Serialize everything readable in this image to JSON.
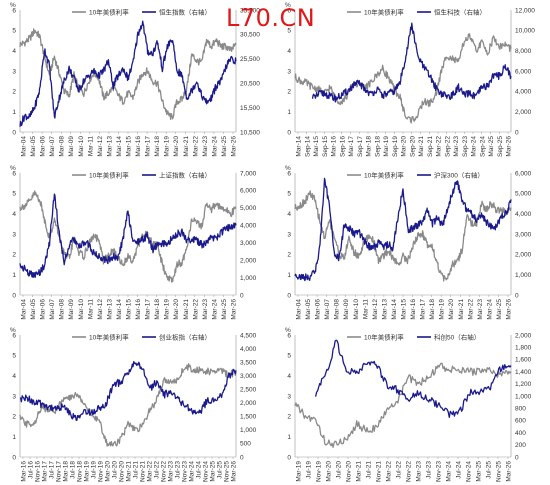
{
  "watermark": "L70.CN",
  "chart_data": [
    {
      "type": "line",
      "y_unit_label": "%",
      "legend": [
        "10年美债利率",
        "恒生指数（右轴）"
      ],
      "colors": [
        "#8a8a8a",
        "#1a1a8c"
      ],
      "ylim_left": [
        0,
        6
      ],
      "left_ticks": [
        "0",
        "1",
        "2",
        "3",
        "4",
        "5",
        "6"
      ],
      "ylim_right": [
        10500,
        35500
      ],
      "right_ticks": [
        "10,500",
        "15,500",
        "20,500",
        "25,500",
        "30,500",
        "35,500"
      ],
      "x_ticks": [
        "Mar-04",
        "Mar-05",
        "Mar-06",
        "Mar-07",
        "Mar-08",
        "Mar-09",
        "Mar-10",
        "Mar-11",
        "Mar-12",
        "Mar-13",
        "Mar-14",
        "Mar-15",
        "Mar-16",
        "Mar-17",
        "Mar-18",
        "Mar-19",
        "Mar-20",
        "Mar-21",
        "Mar-22",
        "Mar-23",
        "Mar-24",
        "Mar-25",
        "Mar-26"
      ],
      "series": [
        {
          "name": "10年美债利率",
          "axis": "left",
          "values": [
            4.3,
            4.4,
            4.6,
            5.0,
            4.7,
            3.7,
            2.8,
            3.7,
            2.9,
            2.0,
            1.8,
            2.8,
            2.1,
            1.9,
            2.5,
            2.9,
            2.7,
            1.7,
            1.9,
            2.2,
            1.8,
            1.5,
            1.9,
            1.7,
            2.4,
            2.9,
            3.0,
            2.5,
            2.4,
            1.5,
            0.9,
            0.7,
            1.5,
            1.6,
            2.2,
            3.8,
            3.5,
            3.4,
            4.5,
            4.2,
            4.5,
            4.2,
            4.2,
            4.0,
            4.3
          ]
        },
        {
          "name": "恒生指数（右轴）",
          "axis": "right",
          "values": [
            12000,
            13800,
            13600,
            15600,
            19000,
            27500,
            24000,
            13500,
            17500,
            21000,
            23500,
            21500,
            19000,
            21000,
            22000,
            23000,
            22000,
            23000,
            25000,
            20000,
            22000,
            23500,
            21500,
            24500,
            30500,
            33000,
            27000,
            26500,
            29000,
            23500,
            28000,
            29500,
            23000,
            22000,
            17500,
            19000,
            21000,
            18000,
            16500,
            17500,
            20000,
            21000,
            24000,
            25500,
            25000
          ]
        }
      ]
    },
    {
      "type": "line",
      "y_unit_label": "%",
      "legend": [
        "10年美债利率",
        "恒生科技（右轴）"
      ],
      "colors": [
        "#8a8a8a",
        "#1a1a8c"
      ],
      "ylim_left": [
        0,
        6
      ],
      "left_ticks": [
        "0",
        "1",
        "2",
        "3",
        "4",
        "5",
        "6"
      ],
      "ylim_right": [
        0,
        12000
      ],
      "right_ticks": [
        "0",
        "2,000",
        "4,000",
        "6,000",
        "8,000",
        "10,000",
        "12,000"
      ],
      "x_ticks": [
        "Mar-14",
        "Sep-14",
        "Mar-15",
        "Sep-15",
        "Mar-16",
        "Sep-16",
        "Mar-17",
        "Sep-17",
        "Mar-18",
        "Sep-18",
        "Mar-19",
        "Sep-19",
        "Mar-20",
        "Sep-20",
        "Mar-21",
        "Sep-21",
        "Mar-22",
        "Sep-22",
        "Mar-23",
        "Sep-23",
        "Mar-24",
        "Sep-24",
        "Mar-25",
        "Sep-25",
        "Mar-26"
      ],
      "series": [
        {
          "name": "10年美债利率",
          "axis": "left",
          "values": [
            2.7,
            2.5,
            2.4,
            2.2,
            2.1,
            1.9,
            2.2,
            1.6,
            1.5,
            1.8,
            2.4,
            2.3,
            2.2,
            2.4,
            2.8,
            3.1,
            2.7,
            2.1,
            1.7,
            0.7,
            0.6,
            0.8,
            1.5,
            1.4,
            1.7,
            2.9,
            3.8,
            3.6,
            3.4,
            4.5,
            4.7,
            4.0,
            4.4,
            3.9,
            4.6,
            4.2,
            4.3,
            4.1
          ]
        },
        {
          "name": "恒生科技（右轴）",
          "axis": "right",
          "values": [
            null,
            null,
            null,
            3300,
            3700,
            3800,
            3500,
            3300,
            3600,
            4000,
            4600,
            4800,
            4200,
            3700,
            4200,
            3600,
            3800,
            4000,
            4900,
            7500,
            10600,
            7500,
            6400,
            5600,
            4500,
            3800,
            3500,
            3600,
            4400,
            3600,
            3800,
            3400,
            4400,
            4500,
            5600,
            5500,
            6500,
            5500
          ]
        }
      ]
    },
    {
      "type": "line",
      "y_unit_label": "%",
      "legend": [
        "10年美债利率",
        "上证指数（右轴）"
      ],
      "colors": [
        "#8a8a8a",
        "#1a1a8c"
      ],
      "ylim_left": [
        0,
        6
      ],
      "left_ticks": [
        "0",
        "1",
        "2",
        "3",
        "4",
        "5",
        "6"
      ],
      "ylim_right": [
        0,
        7000
      ],
      "right_ticks": [
        "0",
        "1,000",
        "2,000",
        "3,000",
        "4,000",
        "5,000",
        "6,000",
        "7,000"
      ],
      "x_ticks": [
        "Mar-04",
        "Mar-05",
        "Mar-06",
        "Mar-07",
        "Mar-08",
        "Mar-09",
        "Mar-10",
        "Mar-11",
        "Mar-12",
        "Mar-13",
        "Mar-14",
        "Mar-15",
        "Mar-16",
        "Mar-17",
        "Mar-18",
        "Mar-19",
        "Mar-20",
        "Mar-21",
        "Mar-22",
        "Mar-23",
        "Mar-24",
        "Mar-25",
        "Mar-26"
      ],
      "series": [
        {
          "name": "10年美债利率",
          "axis": "left",
          "values": [
            4.3,
            4.4,
            4.6,
            5.0,
            4.7,
            3.7,
            2.8,
            3.7,
            2.9,
            2.0,
            1.8,
            2.8,
            2.1,
            1.9,
            2.5,
            2.9,
            2.7,
            1.7,
            1.9,
            2.2,
            1.8,
            1.5,
            1.9,
            1.7,
            2.4,
            2.9,
            3.0,
            2.5,
            2.4,
            1.5,
            0.9,
            0.7,
            1.5,
            1.6,
            2.2,
            3.8,
            3.5,
            3.4,
            4.5,
            4.2,
            4.5,
            4.2,
            4.2,
            4.0,
            4.3
          ]
        },
        {
          "name": "上证指数（右轴）",
          "axis": "right",
          "values": [
            1700,
            1500,
            1200,
            1100,
            1300,
            1700,
            3000,
            5900,
            3500,
            1900,
            2800,
            3200,
            2700,
            3000,
            2900,
            2400,
            2200,
            2100,
            2000,
            2200,
            2100,
            3300,
            4800,
            3000,
            3100,
            3200,
            3400,
            2600,
            2900,
            3000,
            2800,
            3300,
            3500,
            3600,
            3100,
            3200,
            3100,
            2900,
            3000,
            3300,
            3200,
            3600,
            3800,
            3900,
            4000
          ]
        }
      ]
    },
    {
      "type": "line",
      "y_unit_label": "%",
      "legend": [
        "10年美债利率",
        "沪深300（右轴）"
      ],
      "colors": [
        "#8a8a8a",
        "#1a1a8c"
      ],
      "ylim_left": [
        0,
        6
      ],
      "left_ticks": [
        "0",
        "1",
        "2",
        "3",
        "4",
        "5",
        "6"
      ],
      "ylim_right": [
        0,
        6000
      ],
      "right_ticks": [
        "0",
        "1,000",
        "2,000",
        "3,000",
        "4,000",
        "5,000",
        "6,000"
      ],
      "x_ticks": [
        "Mar-04",
        "Mar-05",
        "Mar-06",
        "Mar-07",
        "Mar-08",
        "Mar-09",
        "Mar-10",
        "Mar-11",
        "Mar-12",
        "Mar-13",
        "Mar-14",
        "Mar-15",
        "Mar-16",
        "Mar-17",
        "Mar-18",
        "Mar-19",
        "Mar-20",
        "Mar-21",
        "Mar-22",
        "Mar-23",
        "Mar-24",
        "Mar-25",
        "Mar-26"
      ],
      "series": [
        {
          "name": "10年美债利率",
          "axis": "left",
          "values": [
            4.3,
            4.4,
            4.6,
            5.0,
            4.7,
            3.7,
            2.8,
            3.7,
            2.9,
            2.0,
            1.8,
            2.8,
            2.1,
            1.9,
            2.5,
            2.9,
            2.7,
            1.7,
            1.9,
            2.2,
            1.8,
            1.5,
            1.9,
            1.7,
            2.4,
            2.9,
            3.0,
            2.5,
            2.4,
            1.5,
            0.9,
            0.7,
            1.5,
            1.6,
            2.2,
            3.8,
            3.5,
            3.4,
            4.5,
            4.2,
            4.5,
            4.2,
            4.2,
            4.0,
            4.3
          ]
        },
        {
          "name": "沪深300（右轴）",
          "axis": "right",
          "values": [
            1000,
            900,
            850,
            900,
            1100,
            2200,
            5600,
            4500,
            2000,
            1800,
            3400,
            3300,
            3000,
            3100,
            2700,
            2400,
            2300,
            2600,
            2400,
            2500,
            2300,
            3900,
            5200,
            3200,
            3300,
            3400,
            3600,
            4200,
            3500,
            3800,
            3400,
            4100,
            5000,
            5600,
            4700,
            4200,
            4000,
            3700,
            4000,
            3600,
            3400,
            3300,
            3900,
            4000,
            4700
          ]
        }
      ]
    },
    {
      "type": "line",
      "y_unit_label": "%",
      "legend": [
        "10年美债利率",
        "创业板指（右轴）"
      ],
      "colors": [
        "#8a8a8a",
        "#1a1a8c"
      ],
      "ylim_left": [
        0,
        6
      ],
      "left_ticks": [
        "0",
        "1",
        "2",
        "3",
        "4",
        "5",
        "6"
      ],
      "ylim_right": [
        0,
        4500
      ],
      "right_ticks": [
        "0",
        "500",
        "1,000",
        "1,500",
        "2,000",
        "2,500",
        "3,000",
        "3,500",
        "4,000",
        "4,500"
      ],
      "x_ticks": [
        "Mar-16",
        "Jul-16",
        "Nov-16",
        "Mar-17",
        "Jul-17",
        "Nov-17",
        "Mar-18",
        "Jul-18",
        "Nov-18",
        "Mar-19",
        "Jul-19",
        "Nov-19",
        "Mar-20",
        "Jul-20",
        "Nov-20",
        "Mar-21",
        "Jul-21",
        "Nov-21",
        "Mar-22",
        "Jul-22",
        "Nov-22",
        "Mar-23",
        "Jul-23",
        "Nov-23",
        "Mar-24",
        "Jul-24",
        "Nov-24",
        "Mar-25",
        "Jul-25",
        "Nov-25",
        "Mar-26"
      ],
      "series": [
        {
          "name": "10年美债利率",
          "axis": "left",
          "values": [
            1.9,
            1.6,
            1.7,
            2.4,
            2.4,
            2.3,
            2.8,
            2.9,
            3.1,
            2.6,
            2.0,
            1.8,
            0.7,
            0.6,
            0.9,
            1.6,
            1.3,
            1.5,
            2.3,
            2.8,
            3.9,
            3.6,
            3.9,
            4.5,
            4.3,
            4.3,
            4.2,
            4.2,
            4.3,
            4.0,
            4.2
          ]
        },
        {
          "name": "创业板指（右轴）",
          "axis": "right",
          "values": [
            2100,
            2200,
            2000,
            1950,
            1850,
            1800,
            1850,
            1600,
            1400,
            1700,
            1650,
            1800,
            2000,
            2700,
            2750,
            3100,
            3500,
            3300,
            2500,
            2800,
            2300,
            2400,
            2100,
            1900,
            1700,
            1600,
            2100,
            2100,
            2300,
            3000,
            3200
          ]
        }
      ]
    },
    {
      "type": "line",
      "y_unit_label": "%",
      "legend": [
        "10年美债利率",
        "科创50（右轴）"
      ],
      "colors": [
        "#8a8a8a",
        "#1a1a8c"
      ],
      "ylim_left": [
        0,
        6
      ],
      "left_ticks": [
        "0",
        "1",
        "2",
        "3",
        "4",
        "5",
        "6"
      ],
      "ylim_right": [
        0,
        2000
      ],
      "right_ticks": [
        "0",
        "200",
        "400",
        "600",
        "800",
        "1,000",
        "1,200",
        "1,400",
        "1,600",
        "1,800",
        "2,000"
      ],
      "x_ticks": [
        "Mar-19",
        "Jul-19",
        "Nov-19",
        "Mar-20",
        "Jul-20",
        "Nov-20",
        "Mar-21",
        "Jul-21",
        "Nov-21",
        "Mar-22",
        "Jul-22",
        "Nov-22",
        "Mar-23",
        "Jul-23",
        "Nov-23",
        "Mar-24",
        "Jul-24",
        "Nov-24",
        "Mar-25",
        "Jul-25",
        "Nov-25",
        "Mar-26"
      ],
      "series": [
        {
          "name": "10年美债利率",
          "axis": "left",
          "values": [
            2.6,
            2.0,
            1.8,
            0.7,
            0.6,
            0.9,
            1.6,
            1.3,
            1.5,
            2.3,
            2.8,
            3.9,
            3.6,
            3.9,
            4.5,
            4.3,
            4.3,
            4.2,
            4.2,
            4.3,
            4.0,
            4.2
          ]
        },
        {
          "name": "科创50（右轴）",
          "axis": "right",
          "values": [
            null,
            null,
            1050,
            1350,
            1900,
            1450,
            1350,
            1550,
            1500,
            1150,
            1100,
            950,
            1050,
            950,
            850,
            700,
            750,
            1050,
            1050,
            1150,
            1450,
            1500
          ]
        }
      ]
    }
  ]
}
